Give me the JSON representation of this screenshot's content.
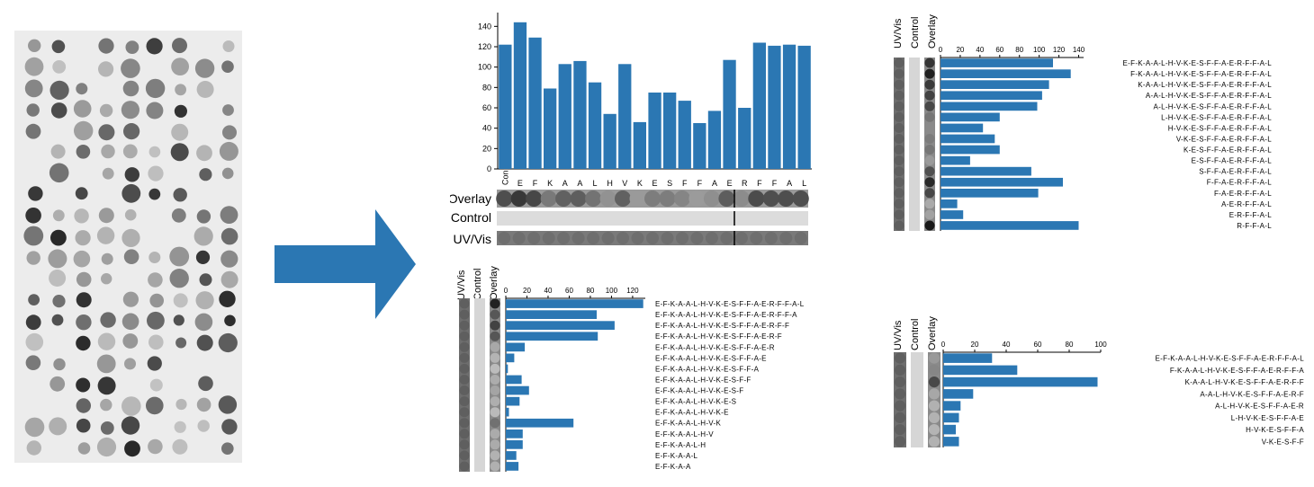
{
  "colors": {
    "bar": "#2b77b3",
    "arrow": "#2b77b3",
    "blot_bg": "#ececec",
    "spot": "#202020"
  },
  "strip_labels": {
    "overlay": "Overlay",
    "control": "Control",
    "uvvis": "UV/Vis"
  },
  "chart_data": [
    {
      "type": "bar",
      "categories": [
        "Con",
        "E",
        "F",
        "K",
        "A",
        "A",
        "L",
        "H",
        "V",
        "K",
        "E",
        "S",
        "F",
        "F",
        "A",
        "E",
        "R",
        "F",
        "F",
        "A",
        "L"
      ],
      "values": [
        122,
        144,
        129,
        79,
        103,
        106,
        85,
        54,
        103,
        46,
        75,
        75,
        67,
        45,
        57,
        107,
        60,
        124,
        121,
        122,
        121
      ],
      "ylim": [
        0,
        150
      ],
      "yticks": [
        "0",
        "20",
        "40",
        "60",
        "80",
        "100",
        "120",
        "140"
      ],
      "xlabel": "",
      "ylabel": ""
    },
    {
      "type": "bar",
      "orientation": "horizontal",
      "categories": [
        "E-F-K-A-A-L-H-V-K-E-S-F-F-A-E-R-F-F-A-L",
        "F-K-A-A-L-H-V-K-E-S-F-F-A-E-R-F-F-A-L",
        "K-A-A-L-H-V-K-E-S-F-F-A-E-R-F-F-A-L",
        "A-A-L-H-V-K-E-S-F-F-A-E-R-F-F-A-L",
        "A-L-H-V-K-E-S-F-F-A-E-R-F-F-A-L",
        "L-H-V-K-E-S-F-F-A-E-R-F-F-A-L",
        "H-V-K-E-S-F-F-A-E-R-F-F-A-L",
        "V-K-E-S-F-F-A-E-R-F-F-A-L",
        "K-E-S-F-F-A-E-R-F-F-A-L",
        "E-S-F-F-A-E-R-F-F-A-L",
        "S-F-F-A-E-R-F-F-A-L",
        "F-F-A-E-R-F-F-A-L",
        "F-A-E-R-F-F-A-L",
        "A-E-R-F-F-A-L",
        "E-R-F-F-A-L",
        "R-F-F-A-L"
      ],
      "values": [
        114,
        132,
        110,
        103,
        98,
        60,
        43,
        55,
        60,
        30,
        92,
        124,
        99,
        17,
        23,
        140
      ],
      "xlim": [
        0,
        145
      ],
      "xticks": [
        "0",
        "20",
        "40",
        "60",
        "80",
        "100",
        "120",
        "140"
      ]
    },
    {
      "type": "bar",
      "orientation": "horizontal",
      "categories": [
        "E-F-K-A-A-L-H-V-K-E-S-F-F-A-E-R-F-F-A-L",
        "E-F-K-A-A-L-H-V-K-E-S-F-F-A-E-R-F-F-A",
        "E-F-K-A-A-L-H-V-K-E-S-F-F-A-E-R-F-F",
        "E-F-K-A-A-L-H-V-K-E-S-F-F-A-E-R-F",
        "E-F-K-A-A-L-H-V-K-E-S-F-F-A-E-R",
        "E-F-K-A-A-L-H-V-K-E-S-F-F-A-E",
        "E-F-K-A-A-L-H-V-K-E-S-F-F-A",
        "E-F-K-A-A-L-H-V-K-E-S-F-F",
        "E-F-K-A-A-L-H-V-K-E-S-F",
        "E-F-K-A-A-L-H-V-K-E-S",
        "E-F-K-A-A-L-H-V-K-E",
        "E-F-K-A-A-L-H-V-K",
        "E-F-K-A-A-L-H-V",
        "E-F-K-A-A-L-H",
        "E-F-K-A-A-L",
        "E-F-K-A-A"
      ],
      "values": [
        130,
        86,
        103,
        87,
        18,
        8,
        2,
        15,
        22,
        13,
        3,
        64,
        16,
        16,
        10,
        12
      ],
      "xlim": [
        0,
        132
      ],
      "xticks": [
        "0",
        "20",
        "40",
        "60",
        "80",
        "100",
        "120"
      ]
    },
    {
      "type": "bar",
      "orientation": "horizontal",
      "categories": [
        "E-F-K-A-A-L-H-V-K-E-S-F-F-A-E-R-F-F-A-L",
        "F-K-A-A-L-H-V-K-E-S-F-F-A-E-R-F-F-A",
        "K-A-A-L-H-V-K-E-S-F-F-A-E-R-F-F",
        "A-A-L-H-V-K-E-S-F-F-A-E-R-F",
        "A-L-H-V-K-E-S-F-F-A-E-R",
        "L-H-V-K-E-S-F-F-A-E",
        "H-V-K-E-S-F-F-A",
        "V-K-E-S-F-F"
      ],
      "values": [
        31,
        47,
        98,
        19,
        11,
        10,
        8,
        10
      ],
      "xlim": [
        0,
        100
      ],
      "xticks": [
        "0",
        "20",
        "40",
        "60",
        "80",
        "100"
      ]
    }
  ]
}
